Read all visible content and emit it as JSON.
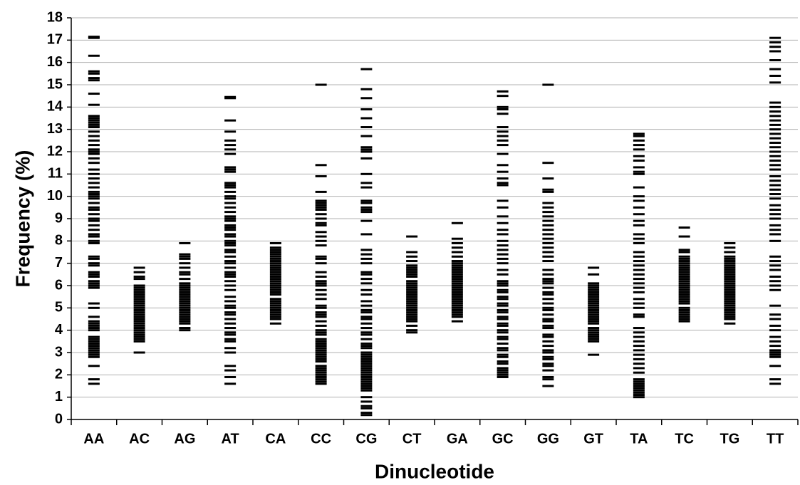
{
  "chart_data": {
    "type": "strip",
    "x_label": "Dinucleotide",
    "y_label": "Frequency (%)",
    "categories": [
      "AA",
      "AC",
      "AG",
      "AT",
      "CA",
      "CC",
      "CG",
      "CT",
      "GA",
      "GC",
      "GG",
      "GT",
      "TA",
      "TC",
      "TG",
      "TT"
    ],
    "values": [
      [
        1.6,
        1.8,
        2.4,
        2.8,
        2.9,
        3.0,
        3.1,
        3.2,
        3.3,
        3.4,
        3.5,
        3.6,
        3.7,
        4.0,
        4.1,
        4.2,
        4.3,
        4.4,
        4.6,
        5.0,
        5.2,
        5.9,
        6.0,
        6.1,
        6.2,
        6.4,
        6.5,
        6.6,
        6.9,
        7.0,
        7.2,
        7.3,
        7.9,
        8.0,
        8.2,
        8.3,
        8.5,
        8.7,
        8.9,
        9.0,
        9.2,
        9.4,
        9.5,
        9.7,
        9.9,
        10.0,
        10.1,
        10.2,
        10.4,
        10.6,
        10.8,
        11.0,
        11.2,
        11.5,
        11.7,
        11.9,
        12.0,
        12.1,
        12.3,
        12.5,
        12.7,
        12.9,
        13.1,
        13.2,
        13.3,
        13.4,
        13.5,
        13.6,
        14.1,
        14.6,
        15.2,
        15.3,
        15.5,
        15.6,
        16.3,
        17.1,
        17.15
      ],
      [
        3.0,
        3.5,
        3.6,
        3.7,
        3.8,
        3.9,
        4.0,
        4.1,
        4.2,
        4.3,
        4.4,
        4.5,
        4.6,
        4.7,
        4.8,
        4.9,
        5.0,
        5.1,
        5.2,
        5.3,
        5.4,
        5.5,
        5.6,
        5.7,
        5.8,
        5.9,
        6.0,
        6.3,
        6.4,
        6.6,
        6.8
      ],
      [
        4.0,
        4.1,
        4.3,
        4.4,
        4.5,
        4.6,
        4.7,
        4.8,
        4.9,
        5.0,
        5.1,
        5.2,
        5.3,
        5.4,
        5.5,
        5.6,
        5.7,
        5.8,
        5.9,
        6.0,
        6.1,
        6.3,
        6.5,
        6.6,
        6.8,
        7.0,
        7.2,
        7.3,
        7.4,
        7.9
      ],
      [
        1.6,
        1.9,
        2.2,
        2.4,
        3.0,
        3.2,
        3.5,
        3.6,
        3.8,
        3.9,
        4.1,
        4.3,
        4.5,
        4.7,
        4.8,
        5.0,
        5.1,
        5.3,
        5.5,
        5.8,
        6.0,
        6.2,
        6.4,
        6.5,
        6.6,
        6.8,
        7.0,
        7.1,
        7.3,
        7.5,
        7.6,
        7.8,
        7.9,
        8.0,
        8.2,
        8.3,
        8.5,
        8.6,
        8.7,
        8.9,
        9.0,
        9.1,
        9.3,
        9.5,
        9.7,
        9.9,
        10.0,
        10.2,
        10.4,
        10.5,
        10.6,
        11.1,
        11.2,
        11.3,
        11.9,
        12.1,
        12.3,
        12.5,
        12.9,
        13.4,
        14.4,
        14.45
      ],
      [
        4.3,
        4.5,
        4.6,
        4.7,
        4.8,
        4.9,
        5.0,
        5.1,
        5.2,
        5.3,
        5.4,
        5.6,
        5.7,
        5.8,
        5.9,
        6.0,
        6.1,
        6.2,
        6.3,
        6.4,
        6.5,
        6.6,
        6.7,
        6.8,
        6.9,
        7.0,
        7.1,
        7.2,
        7.3,
        7.4,
        7.5,
        7.6,
        7.7,
        7.9
      ],
      [
        1.6,
        1.7,
        1.8,
        1.9,
        2.0,
        2.1,
        2.2,
        2.3,
        2.4,
        2.6,
        2.7,
        2.8,
        2.9,
        3.0,
        3.1,
        3.2,
        3.3,
        3.4,
        3.5,
        3.6,
        3.8,
        3.9,
        4.0,
        4.2,
        4.4,
        4.6,
        4.7,
        4.8,
        5.0,
        5.1,
        5.4,
        5.6,
        5.8,
        6.0,
        6.1,
        6.2,
        6.4,
        6.6,
        7.0,
        7.2,
        7.3,
        7.8,
        8.0,
        8.2,
        8.4,
        8.7,
        8.8,
        9.0,
        9.2,
        9.4,
        9.5,
        9.6,
        9.7,
        9.8,
        10.2,
        10.9,
        11.4,
        15.0
      ],
      [
        0.2,
        0.3,
        0.5,
        0.6,
        0.8,
        1.0,
        1.3,
        1.4,
        1.5,
        1.6,
        1.7,
        1.8,
        1.9,
        2.0,
        2.1,
        2.2,
        2.3,
        2.4,
        2.5,
        2.6,
        2.7,
        2.8,
        2.9,
        3.0,
        3.2,
        3.3,
        3.4,
        3.6,
        3.8,
        3.9,
        4.1,
        4.3,
        4.5,
        4.6,
        4.8,
        4.9,
        5.1,
        5.3,
        5.6,
        5.8,
        6.1,
        6.3,
        6.5,
        6.6,
        7.0,
        7.2,
        7.4,
        7.6,
        8.3,
        8.9,
        9.3,
        9.4,
        9.5,
        9.7,
        9.8,
        10.4,
        10.6,
        11.0,
        11.7,
        12.0,
        12.1,
        12.2,
        12.7,
        13.1,
        13.5,
        13.9,
        14.4,
        14.8,
        15.7
      ],
      [
        3.9,
        4.0,
        4.2,
        4.4,
        4.5,
        4.6,
        4.7,
        4.8,
        4.9,
        5.0,
        5.1,
        5.2,
        5.3,
        5.4,
        5.5,
        5.6,
        5.7,
        5.8,
        5.9,
        6.0,
        6.1,
        6.2,
        6.4,
        6.5,
        6.6,
        6.7,
        6.8,
        6.9,
        7.1,
        7.3,
        7.5,
        8.2
      ],
      [
        4.4,
        4.6,
        4.7,
        4.8,
        4.9,
        5.0,
        5.1,
        5.2,
        5.3,
        5.4,
        5.5,
        5.6,
        5.7,
        5.8,
        5.9,
        6.0,
        6.1,
        6.2,
        6.3,
        6.4,
        6.5,
        6.6,
        6.7,
        6.8,
        6.9,
        7.0,
        7.1,
        7.3,
        7.5,
        7.7,
        7.9,
        8.1,
        8.8
      ],
      [
        1.9,
        2.0,
        2.1,
        2.2,
        2.3,
        2.5,
        2.6,
        2.8,
        2.9,
        3.1,
        3.2,
        3.4,
        3.6,
        3.7,
        3.9,
        4.0,
        4.2,
        4.3,
        4.5,
        4.6,
        4.8,
        4.9,
        5.1,
        5.2,
        5.4,
        5.5,
        5.7,
        5.8,
        6.0,
        6.1,
        6.2,
        6.5,
        6.7,
        7.0,
        7.2,
        7.4,
        7.6,
        7.8,
        8.0,
        8.3,
        8.5,
        8.8,
        9.1,
        9.5,
        9.8,
        10.5,
        10.6,
        10.8,
        11.1,
        11.4,
        11.9,
        12.3,
        12.5,
        12.7,
        12.9,
        13.1,
        13.7,
        13.9,
        14.0,
        14.5,
        14.7
      ],
      [
        1.5,
        1.8,
        1.9,
        2.2,
        2.4,
        2.5,
        2.7,
        2.8,
        3.0,
        3.1,
        3.3,
        3.5,
        3.7,
        3.8,
        4.1,
        4.2,
        4.4,
        4.5,
        4.7,
        4.9,
        5.0,
        5.2,
        5.4,
        5.6,
        5.7,
        5.9,
        6.1,
        6.2,
        6.3,
        6.5,
        6.7,
        7.1,
        7.3,
        7.5,
        7.7,
        7.9,
        8.1,
        8.3,
        8.5,
        8.7,
        8.9,
        9.1,
        9.3,
        9.5,
        9.7,
        10.2,
        10.3,
        10.8,
        11.5,
        15.0
      ],
      [
        2.9,
        3.5,
        3.6,
        3.7,
        3.8,
        3.9,
        4.0,
        4.1,
        4.3,
        4.4,
        4.5,
        4.6,
        4.7,
        4.8,
        4.9,
        5.0,
        5.1,
        5.2,
        5.3,
        5.4,
        5.5,
        5.6,
        5.7,
        5.8,
        5.9,
        6.0,
        6.1,
        6.5,
        6.8
      ],
      [
        1.0,
        1.1,
        1.2,
        1.3,
        1.4,
        1.5,
        1.6,
        1.7,
        1.8,
        2.1,
        2.3,
        2.5,
        2.7,
        2.9,
        3.1,
        3.3,
        3.5,
        3.7,
        3.9,
        4.1,
        4.6,
        4.7,
        5.0,
        5.2,
        5.4,
        5.7,
        5.9,
        6.1,
        6.3,
        6.5,
        6.7,
        6.9,
        7.1,
        7.3,
        7.5,
        7.9,
        8.1,
        8.3,
        8.7,
        8.9,
        9.2,
        9.5,
        9.8,
        10.0,
        10.4,
        11.0,
        11.1,
        11.3,
        11.6,
        11.8,
        12.1,
        12.3,
        12.5,
        12.7,
        12.8
      ],
      [
        4.4,
        4.5,
        4.6,
        4.7,
        4.8,
        4.9,
        5.0,
        5.2,
        5.3,
        5.4,
        5.5,
        5.6,
        5.7,
        5.8,
        5.9,
        6.0,
        6.1,
        6.2,
        6.3,
        6.4,
        6.5,
        6.6,
        6.7,
        6.8,
        6.9,
        7.0,
        7.1,
        7.2,
        7.3,
        7.5,
        7.6,
        8.2,
        8.6
      ],
      [
        4.3,
        4.5,
        4.6,
        4.7,
        4.8,
        4.9,
        5.0,
        5.1,
        5.2,
        5.3,
        5.4,
        5.5,
        5.6,
        5.7,
        5.8,
        5.9,
        6.0,
        6.1,
        6.2,
        6.3,
        6.4,
        6.5,
        6.6,
        6.7,
        6.8,
        6.9,
        7.0,
        7.1,
        7.2,
        7.3,
        7.5,
        7.7,
        7.9
      ],
      [
        1.6,
        1.8,
        2.4,
        2.8,
        2.9,
        3.0,
        3.1,
        3.3,
        3.5,
        3.7,
        4.0,
        4.2,
        4.5,
        4.7,
        5.1,
        5.8,
        6.0,
        6.2,
        6.4,
        6.7,
        6.9,
        7.1,
        7.3,
        8.0,
        8.3,
        8.5,
        8.7,
        9.0,
        9.2,
        9.4,
        9.6,
        9.9,
        10.1,
        10.3,
        10.5,
        10.7,
        10.9,
        11.2,
        11.4,
        11.6,
        11.8,
        12.0,
        12.2,
        12.4,
        12.6,
        12.8,
        13.0,
        13.2,
        13.4,
        13.6,
        13.8,
        14.0,
        14.2,
        15.1,
        15.4,
        15.7,
        16.1,
        16.5,
        16.7,
        16.9,
        17.1
      ]
    ],
    "color": "#000000",
    "ylim": [
      0,
      18
    ],
    "yticks": [
      0,
      1,
      2,
      3,
      4,
      5,
      6,
      7,
      8,
      9,
      10,
      11,
      12,
      13,
      14,
      15,
      16,
      17,
      18
    ],
    "grid": true
  }
}
